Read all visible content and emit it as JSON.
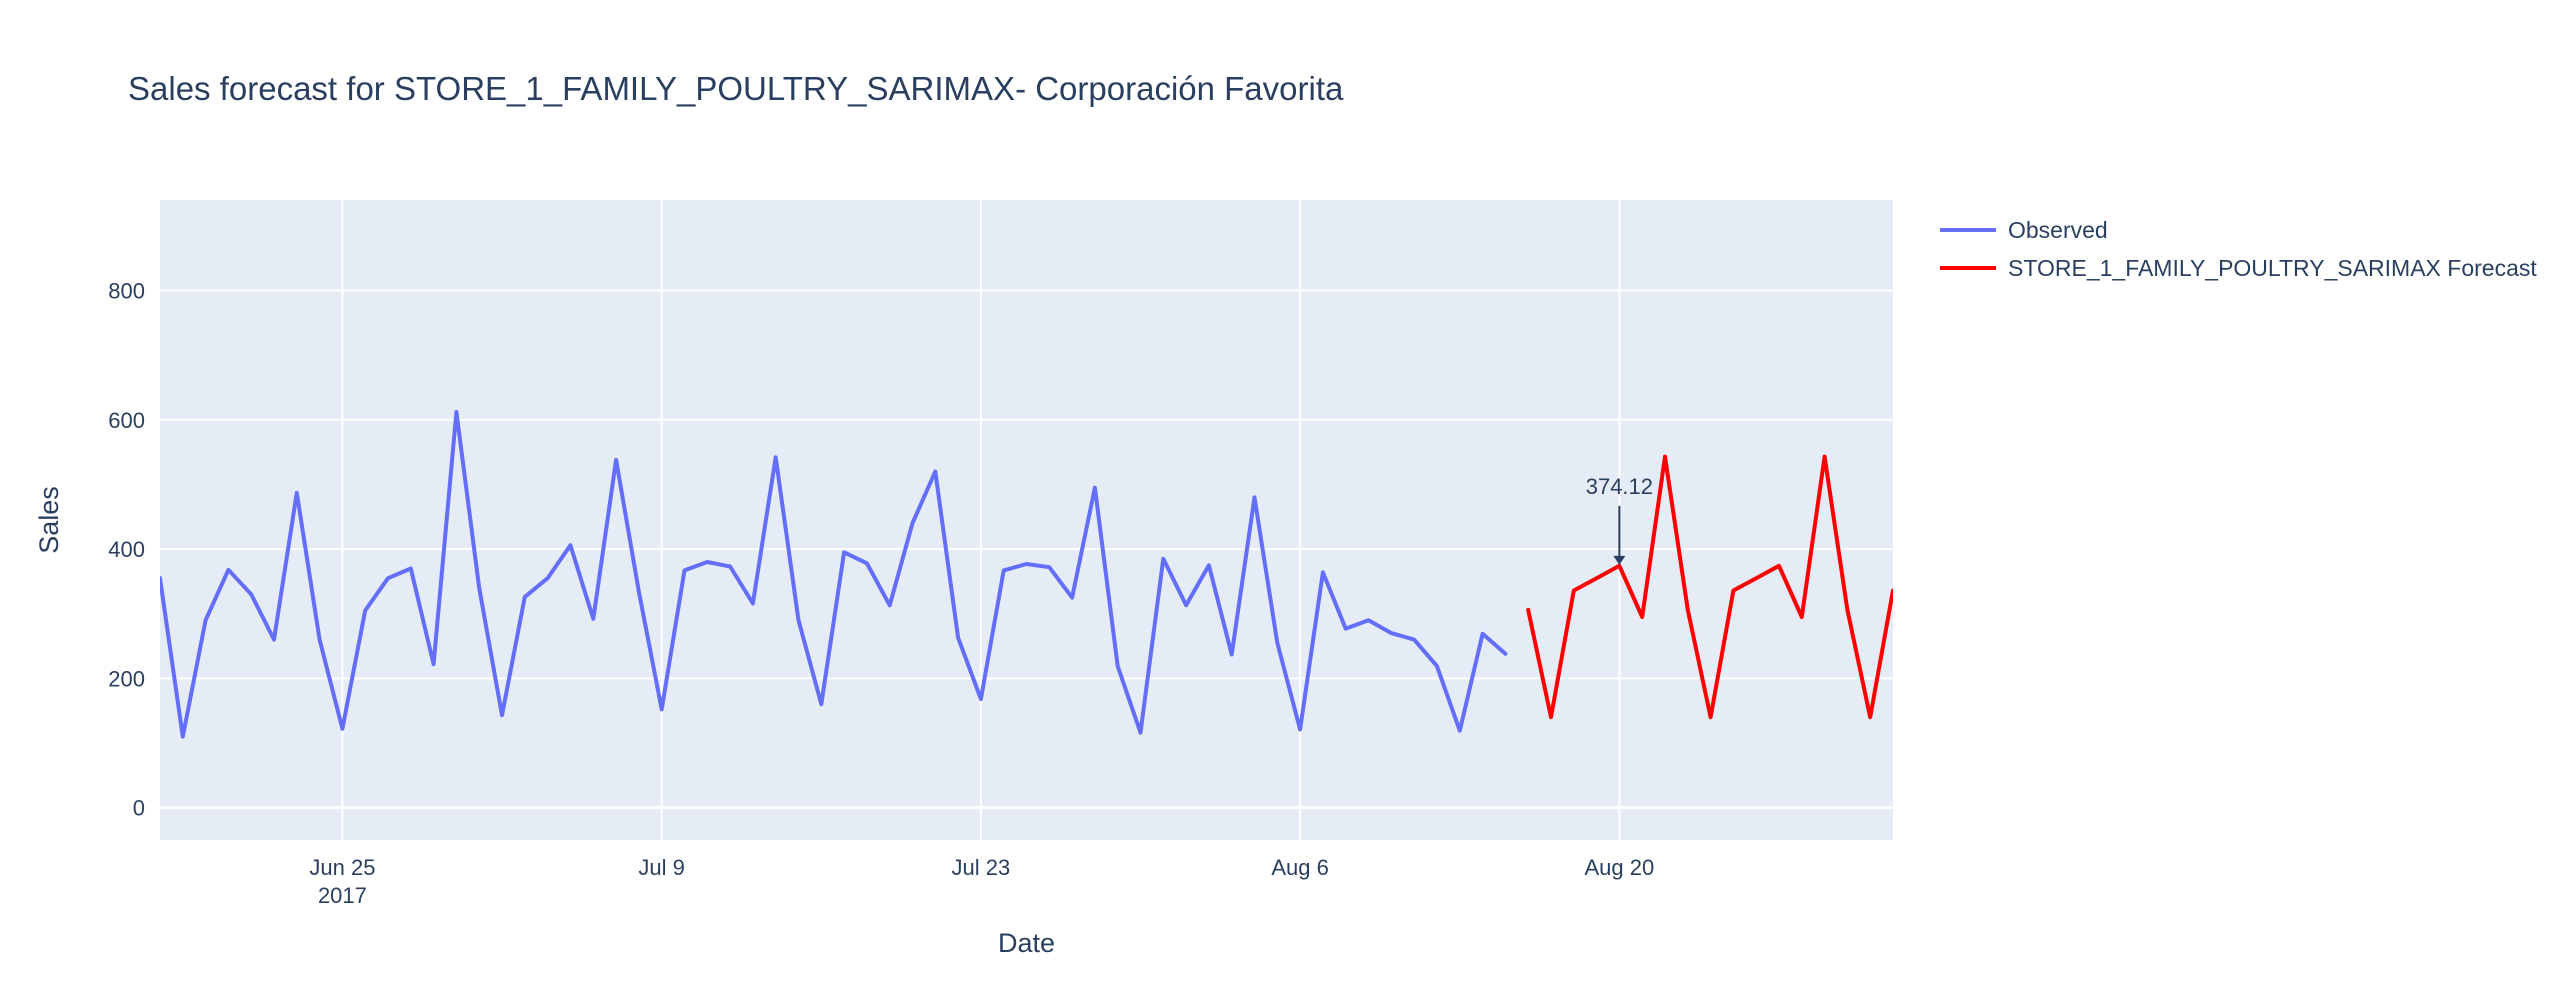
{
  "chart_data": {
    "type": "line",
    "title": "Sales forecast for STORE_1_FAMILY_POULTRY_SARIMAX- Corporación Favorita",
    "xlabel": "Date",
    "ylabel": "Sales",
    "xlim": [
      "2017-06-17",
      "2017-09-01"
    ],
    "ylim": [
      -50,
      940
    ],
    "y_ticks": [
      0,
      200,
      400,
      600,
      800
    ],
    "x_ticks": [
      {
        "date": "2017-06-25",
        "label": "Jun 25",
        "sublabel": "2017"
      },
      {
        "date": "2017-07-09",
        "label": "Jul 9",
        "sublabel": ""
      },
      {
        "date": "2017-07-23",
        "label": "Jul 23",
        "sublabel": ""
      },
      {
        "date": "2017-08-06",
        "label": "Aug 6",
        "sublabel": ""
      },
      {
        "date": "2017-08-20",
        "label": "Aug 20",
        "sublabel": ""
      }
    ],
    "grid": true,
    "legend_position": "top-right",
    "series": [
      {
        "name": "Observed",
        "color": "#636efa",
        "x": [
          "2017-06-17",
          "2017-06-18",
          "2017-06-19",
          "2017-06-20",
          "2017-06-21",
          "2017-06-22",
          "2017-06-23",
          "2017-06-24",
          "2017-06-25",
          "2017-06-26",
          "2017-06-27",
          "2017-06-28",
          "2017-06-29",
          "2017-06-30",
          "2017-07-01",
          "2017-07-02",
          "2017-07-03",
          "2017-07-04",
          "2017-07-05",
          "2017-07-06",
          "2017-07-07",
          "2017-07-08",
          "2017-07-09",
          "2017-07-10",
          "2017-07-11",
          "2017-07-12",
          "2017-07-13",
          "2017-07-14",
          "2017-07-15",
          "2017-07-16",
          "2017-07-17",
          "2017-07-18",
          "2017-07-19",
          "2017-07-20",
          "2017-07-21",
          "2017-07-22",
          "2017-07-23",
          "2017-07-24",
          "2017-07-25",
          "2017-07-26",
          "2017-07-27",
          "2017-07-28",
          "2017-07-29",
          "2017-07-30",
          "2017-07-31",
          "2017-08-01",
          "2017-08-02",
          "2017-08-03",
          "2017-08-04",
          "2017-08-05",
          "2017-08-06",
          "2017-08-07",
          "2017-08-08",
          "2017-08-09",
          "2017-08-10",
          "2017-08-11",
          "2017-08-12",
          "2017-08-13",
          "2017-08-14",
          "2017-08-15"
        ],
        "y": [
          355,
          110,
          290,
          368,
          330,
          260,
          487,
          260,
          122,
          305,
          355,
          370,
          222,
          612,
          340,
          143,
          326,
          355,
          406,
          292,
          538,
          334,
          152,
          367,
          380,
          373,
          316,
          542,
          290,
          160,
          395,
          378,
          313,
          440,
          520,
          263,
          168,
          367,
          377,
          372,
          325,
          495,
          219,
          116,
          385,
          313,
          375,
          237,
          480,
          255,
          121,
          364,
          277,
          290,
          270,
          260,
          219,
          119,
          269,
          238
        ]
      },
      {
        "name": "STORE_1_FAMILY_POULTRY_SARIMAX Forecast",
        "color": "#ff0000",
        "x": [
          "2017-08-16",
          "2017-08-17",
          "2017-08-18",
          "2017-08-19",
          "2017-08-20",
          "2017-08-21",
          "2017-08-22",
          "2017-08-23",
          "2017-08-24",
          "2017-08-25",
          "2017-08-26",
          "2017-08-27",
          "2017-08-28",
          "2017-08-29",
          "2017-08-30",
          "2017-08-31",
          "2017-09-01"
        ],
        "y": [
          306,
          140,
          336,
          355,
          374.12,
          295,
          543,
          306,
          140,
          336,
          355,
          374.12,
          295,
          543,
          306,
          140,
          336
        ]
      }
    ],
    "annotations": [
      {
        "x": "2017-08-20",
        "y": 374.12,
        "text": "374.12"
      }
    ]
  }
}
